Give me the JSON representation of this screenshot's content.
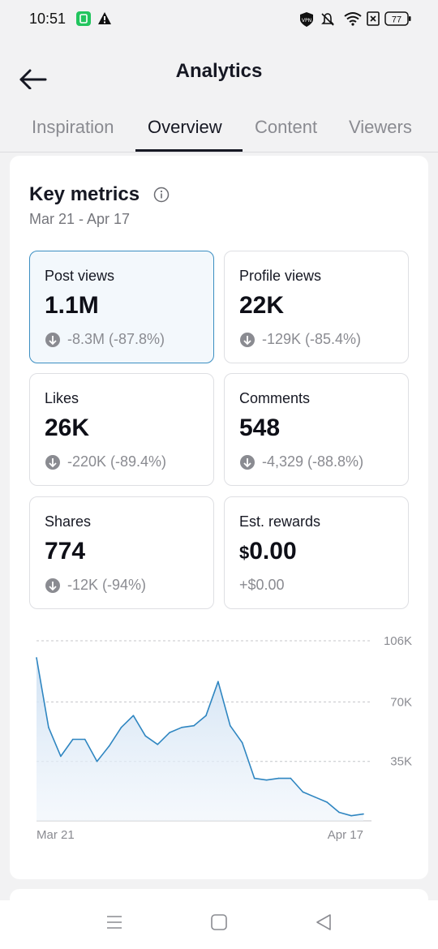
{
  "status": {
    "time": "10:51",
    "battery": "77"
  },
  "header": {
    "title": "Analytics"
  },
  "tabs": [
    {
      "label": "Inspiration"
    },
    {
      "label": "Overview"
    },
    {
      "label": "Content"
    },
    {
      "label": "Viewers"
    }
  ],
  "key_metrics": {
    "title": "Key metrics",
    "date_range": "Mar 21 - Apr 17",
    "items": [
      {
        "label": "Post views",
        "value": "1.1M",
        "delta": "-8.3M (-87.8%)"
      },
      {
        "label": "Profile views",
        "value": "22K",
        "delta": "-129K (-85.4%)"
      },
      {
        "label": "Likes",
        "value": "26K",
        "delta": "-220K (-89.4%)"
      },
      {
        "label": "Comments",
        "value": "548",
        "delta": "-4,329 (-88.8%)"
      },
      {
        "label": "Shares",
        "value": "774",
        "delta": "-12K (-94%)"
      },
      {
        "label": "Est. rewards",
        "currency": "$",
        "value": "0.00",
        "delta": "+$0.00"
      }
    ]
  },
  "colors": {
    "accent": "#2f86c1",
    "selected_bg": "#f3f8fc",
    "fill": "#dfeaf6"
  },
  "chart_data": {
    "type": "area",
    "series": [
      {
        "values": [
          96000,
          55000,
          38000,
          48000,
          48000,
          35000,
          44000,
          55000,
          62000,
          50000,
          45000,
          52000,
          55000,
          56000,
          62000,
          82000,
          56000,
          46000,
          25000,
          24000,
          25000,
          25000,
          17000,
          14000,
          11000,
          5000,
          3000,
          4000
        ]
      }
    ],
    "x_start_label": "Mar 21",
    "x_end_label": "Apr 17",
    "yticks": [
      {
        "value": 106000,
        "label": "106K"
      },
      {
        "value": 70000,
        "label": "70K"
      },
      {
        "value": 35000,
        "label": "35K"
      }
    ],
    "ylim": [
      0,
      106000
    ],
    "grid": true
  }
}
